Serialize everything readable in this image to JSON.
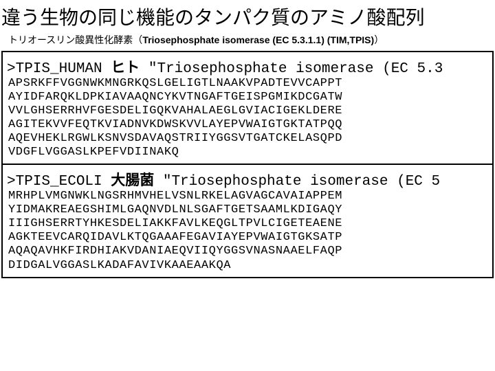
{
  "title": "違う生物の同じ機能のタンパク質のアミノ酸配列",
  "subtitle_jp": "トリオースリン酸異性化酵素（",
  "subtitle_bold": "Triosephosphate isomerase (EC 5.3.1.1) (TIM,TPIS)",
  "subtitle_close": "）",
  "entries": [
    {
      "header_id": ">TPIS_HUMAN ",
      "header_jp": "ヒト",
      "header_rest": " \"Triosephosphate isomerase (EC 5.3",
      "seq": "APSRKFFVGGNWKMNGRKQSLGELIGTLNAAKVPADTEVVCAPPT\nAYIDFARQKLDPKIAVAAQNCYKVTNGAFTGEISPGMIKDCGATW\nVVLGHSERRHVFGESDELIGQKVAHALAEGLGVIACIGEKLDERE\nAGITEKVVFEQTKVIADNVKDWSKVVLAYEPVWAIGTGKTATPQQ\nAQEVHEKLRGWLKSNVSDAVAQSTRIIYGGSVTGATCKELASQPD\nVDGFLVGGASLKPEFVDIINAKQ"
    },
    {
      "header_id": ">TPIS_ECOLI ",
      "header_jp": "大腸菌",
      "header_rest": " \"Triosephosphate isomerase (EC 5",
      "seq": "MRHPLVMGNWKLNGSRHMVHELVSNLRKELAGVAGCAVAIAPPEM\nYIDMAKREAEGSHIMLGAQNVDLNLSGAFTGETSAAMLKDIGAQY\nIIIGHSERRTYHKESDELIAKKFAVLKEQGLTPVLCIGETEAENE\nAGKTEEVCARQIDAVLKTQGAAAFEGAVIAYEPVWAIGTGKSATP\nAQAQAVHKFIRDHIAKVDANIAEQVIIQYGGSVNASNAAELFAQP\nDIDGALVGGASLKADAFAVIVKAAEAAKQA"
    }
  ]
}
